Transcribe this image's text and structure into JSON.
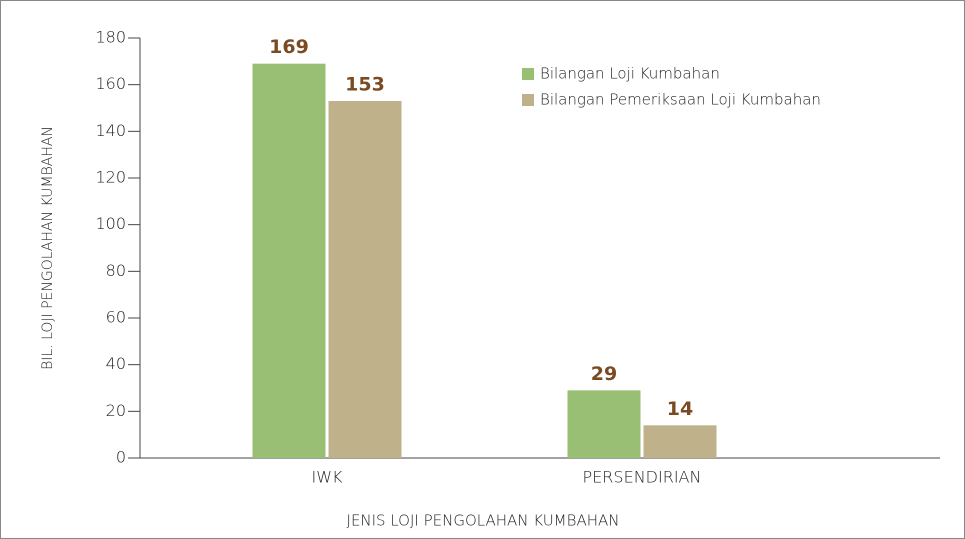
{
  "chart_data": {
    "type": "bar",
    "categories": [
      "IWK",
      "PERSENDIRIAN"
    ],
    "series": [
      {
        "name": "Bilangan Loji Kumbahan",
        "color": "#98bf73",
        "values": [
          169,
          29
        ]
      },
      {
        "name": "Bilangan Pemeriksaan Loji Kumbahan",
        "color": "#bfb28a",
        "values": [
          153,
          14
        ]
      }
    ],
    "ylim": [
      0,
      180
    ],
    "yticks": [
      0,
      20,
      40,
      60,
      80,
      100,
      120,
      140,
      160,
      180
    ],
    "ylabel": "BIL. LOJI PENGOLAHAN KUMBAHAN",
    "xlabel": "JENIS LOJI PENGOLAHAN KUMBAHAN",
    "legend": "upper right",
    "grid": false
  }
}
